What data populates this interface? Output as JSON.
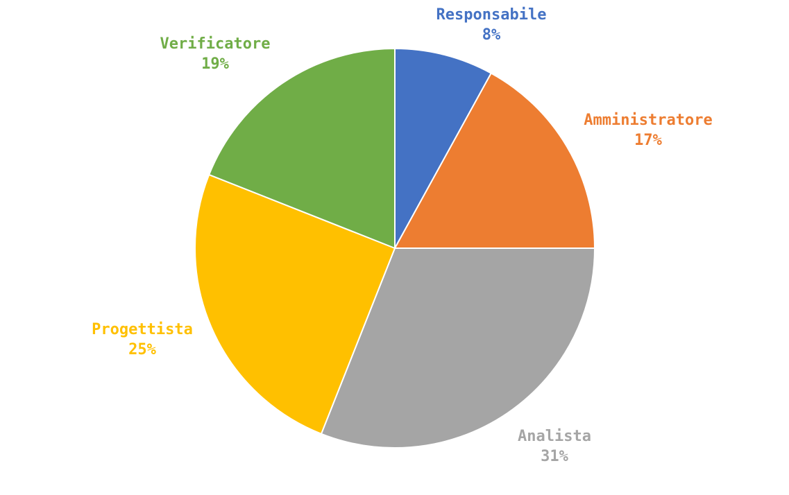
{
  "chart_data": {
    "type": "pie",
    "title": "",
    "slices": [
      {
        "name": "Responsabile",
        "value": 8,
        "label": "8%",
        "color": "#4472C4"
      },
      {
        "name": "Amministratore",
        "value": 17,
        "label": "17%",
        "color": "#ED7D31"
      },
      {
        "name": "Analista",
        "value": 31,
        "label": "31%",
        "color": "#A5A5A5"
      },
      {
        "name": "Progettista",
        "value": 25,
        "label": "25%",
        "color": "#FFC000"
      },
      {
        "name": "Verificatore",
        "value": 19,
        "label": "19%",
        "color": "#70AD47"
      }
    ],
    "start_angle": "12 o'clock",
    "direction": "clockwise",
    "legend": "none",
    "data_labels": "outside, name and percent"
  }
}
